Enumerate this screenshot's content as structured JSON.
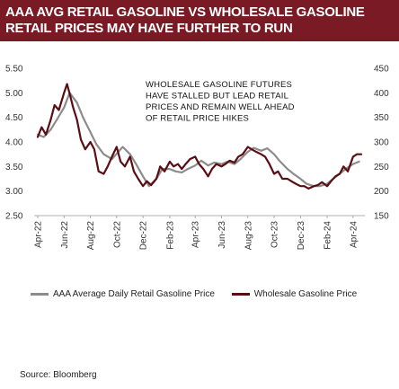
{
  "header": {
    "line1": "AAA AVG RETAIL GASOLINE VS WHOLESALE GASOLINE",
    "line2": "RETAIL PRICES MAY HAVE FURTHER TO RUN"
  },
  "annotation": [
    "WHOLESALE  GASOLINE FUTURES",
    "HAVE STALLED  BUT LEAD RETAIL",
    "PRICES AND  REMAIN WELL AHEAD",
    "OF RETAIL PRICE HIKES"
  ],
  "source": "Source:  Bloomberg",
  "colors": {
    "banner": "#7a1a24",
    "retail": "#8c8c8c",
    "wholesale": "#5a0d12"
  },
  "chart_data": {
    "type": "line",
    "title": "AAA AVG RETAIL GASOLINE VS WHOLESALE GASOLINE",
    "subtitle": "RETAIL PRICES MAY HAVE FURTHER TO RUN",
    "x_tick_labels": [
      "Apr-22",
      "Jun-22",
      "Aug-22",
      "Oct-22",
      "Dec-22",
      "Feb-23",
      "Apr-23",
      "Jun-23",
      "Aug-23",
      "Oct-23",
      "Dec-23",
      "Feb-24",
      "Apr-24"
    ],
    "y_left": {
      "ylim": [
        2.5,
        5.5
      ],
      "ticks": [
        "2.50",
        "3.00",
        "3.50",
        "4.00",
        "4.50",
        "5.00",
        "5.50"
      ]
    },
    "y_right": {
      "ylim": [
        150,
        450
      ],
      "ticks": [
        "150",
        "200",
        "250",
        "300",
        "350",
        "400",
        "450"
      ]
    },
    "grid": false,
    "legend_position": "bottom",
    "series": [
      {
        "name": "AAA Average Daily Retail Gasoline Price",
        "axis": "left",
        "x": [
          "2022-04-01",
          "2022-04-15",
          "2022-05-01",
          "2022-05-15",
          "2022-06-01",
          "2022-06-14",
          "2022-07-01",
          "2022-07-15",
          "2022-08-01",
          "2022-08-15",
          "2022-09-01",
          "2022-09-20",
          "2022-10-05",
          "2022-10-15",
          "2022-11-01",
          "2022-11-15",
          "2022-12-01",
          "2022-12-15",
          "2023-01-01",
          "2023-01-15",
          "2023-02-01",
          "2023-02-15",
          "2023-03-01",
          "2023-03-15",
          "2023-04-01",
          "2023-04-15",
          "2023-05-01",
          "2023-05-15",
          "2023-06-01",
          "2023-06-15",
          "2023-07-01",
          "2023-07-15",
          "2023-08-01",
          "2023-08-15",
          "2023-09-01",
          "2023-09-15",
          "2023-10-01",
          "2023-10-15",
          "2023-11-01",
          "2023-11-15",
          "2023-12-01",
          "2023-12-15",
          "2024-01-01",
          "2024-01-15",
          "2024-02-01",
          "2024-02-15",
          "2024-03-01",
          "2024-03-15",
          "2024-04-01",
          "2024-04-15"
        ],
        "values": [
          4.15,
          4.1,
          4.25,
          4.45,
          4.7,
          5.0,
          4.8,
          4.5,
          4.2,
          3.95,
          3.75,
          3.65,
          3.8,
          3.9,
          3.75,
          3.55,
          3.3,
          3.1,
          3.25,
          3.45,
          3.45,
          3.4,
          3.38,
          3.45,
          3.52,
          3.62,
          3.52,
          3.58,
          3.55,
          3.6,
          3.55,
          3.65,
          3.8,
          3.88,
          3.82,
          3.87,
          3.75,
          3.6,
          3.45,
          3.35,
          3.25,
          3.15,
          3.1,
          3.1,
          3.15,
          3.25,
          3.35,
          3.45,
          3.55,
          3.6
        ]
      },
      {
        "name": "Wholesale Gasoline Price",
        "axis": "right",
        "x": [
          "2022-04-01",
          "2022-04-10",
          "2022-04-20",
          "2022-05-01",
          "2022-05-10",
          "2022-05-20",
          "2022-06-01",
          "2022-06-08",
          "2022-06-15",
          "2022-06-22",
          "2022-07-01",
          "2022-07-10",
          "2022-07-20",
          "2022-08-01",
          "2022-08-10",
          "2022-08-20",
          "2022-09-01",
          "2022-09-10",
          "2022-09-20",
          "2022-10-01",
          "2022-10-10",
          "2022-10-20",
          "2022-11-01",
          "2022-11-10",
          "2022-11-20",
          "2022-12-01",
          "2022-12-10",
          "2022-12-20",
          "2023-01-01",
          "2023-01-10",
          "2023-01-20",
          "2023-02-01",
          "2023-02-10",
          "2023-02-20",
          "2023-03-01",
          "2023-03-10",
          "2023-03-20",
          "2023-04-01",
          "2023-04-10",
          "2023-04-20",
          "2023-05-01",
          "2023-05-10",
          "2023-05-20",
          "2023-06-01",
          "2023-06-10",
          "2023-06-20",
          "2023-07-01",
          "2023-07-10",
          "2023-07-20",
          "2023-08-01",
          "2023-08-10",
          "2023-08-20",
          "2023-09-01",
          "2023-09-10",
          "2023-09-20",
          "2023-10-01",
          "2023-10-10",
          "2023-10-20",
          "2023-11-01",
          "2023-11-10",
          "2023-11-20",
          "2023-12-01",
          "2023-12-10",
          "2023-12-20",
          "2024-01-01",
          "2024-01-10",
          "2024-01-20",
          "2024-02-01",
          "2024-02-10",
          "2024-02-20",
          "2024-03-01",
          "2024-03-10",
          "2024-03-20",
          "2024-04-01",
          "2024-04-10",
          "2024-04-20"
        ],
        "values": [
          310,
          330,
          315,
          345,
          375,
          365,
          400,
          418,
          395,
          370,
          345,
          305,
          285,
          300,
          285,
          240,
          235,
          250,
          270,
          290,
          260,
          250,
          270,
          240,
          225,
          210,
          220,
          212,
          225,
          250,
          240,
          260,
          250,
          255,
          245,
          255,
          265,
          270,
          255,
          245,
          230,
          245,
          255,
          250,
          255,
          262,
          258,
          270,
          275,
          290,
          285,
          280,
          275,
          270,
          255,
          235,
          240,
          225,
          225,
          220,
          215,
          210,
          210,
          205,
          210,
          212,
          218,
          210,
          220,
          230,
          235,
          250,
          240,
          270,
          275,
          275
        ]
      }
    ]
  }
}
